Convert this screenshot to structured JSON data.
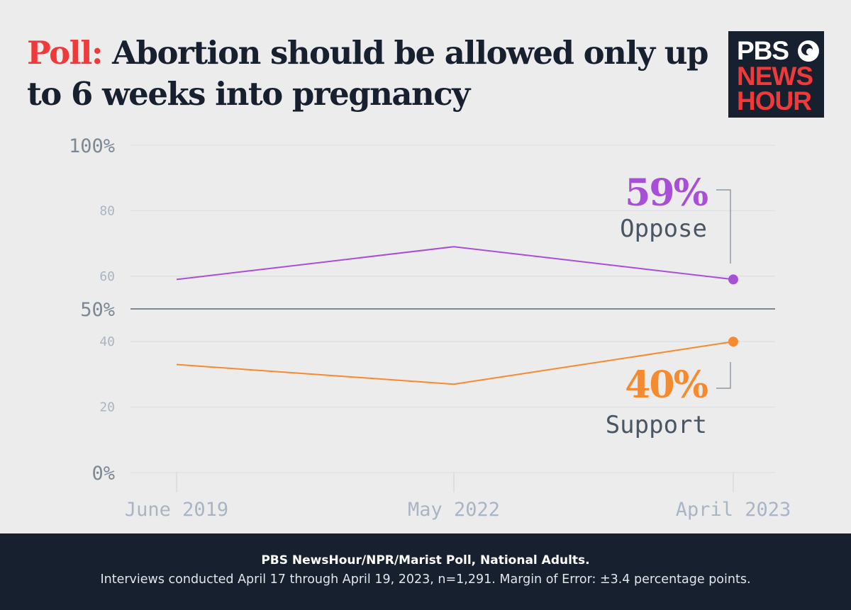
{
  "header": {
    "kicker": "Poll:",
    "title": "Abortion should be allowed only up to 6 weeks into pregnancy"
  },
  "logo": {
    "line1": "PBS",
    "line2": "NEWS",
    "line3": "HOUR"
  },
  "chart_data": {
    "type": "line",
    "title": "Poll: Abortion should be allowed only up to 6 weeks into pregnancy",
    "categories": [
      "June 2019",
      "May 2022",
      "April 2023"
    ],
    "ylim": [
      0,
      100
    ],
    "yticks": [
      {
        "value": 100,
        "label": "100%"
      },
      {
        "value": 80,
        "label": "80"
      },
      {
        "value": 60,
        "label": "60"
      },
      {
        "value": 50,
        "label": "50%"
      },
      {
        "value": 40,
        "label": "40"
      },
      {
        "value": 20,
        "label": "20"
      },
      {
        "value": 0,
        "label": "0%"
      }
    ],
    "reference_line": 50,
    "grid": true,
    "series": [
      {
        "name": "Oppose",
        "values": [
          59,
          69,
          59
        ],
        "color": "#a84fd8",
        "end_label": "59%"
      },
      {
        "name": "Support",
        "values": [
          33,
          27,
          40
        ],
        "color": "#f58b2e",
        "end_label": "40%"
      }
    ]
  },
  "footer": {
    "source": "PBS NewsHour/NPR/Marist Poll, National Adults.",
    "note": "Interviews conducted April 17 through April 19, 2023, n=1,291. Margin of Error: ±3.4 percentage points."
  }
}
